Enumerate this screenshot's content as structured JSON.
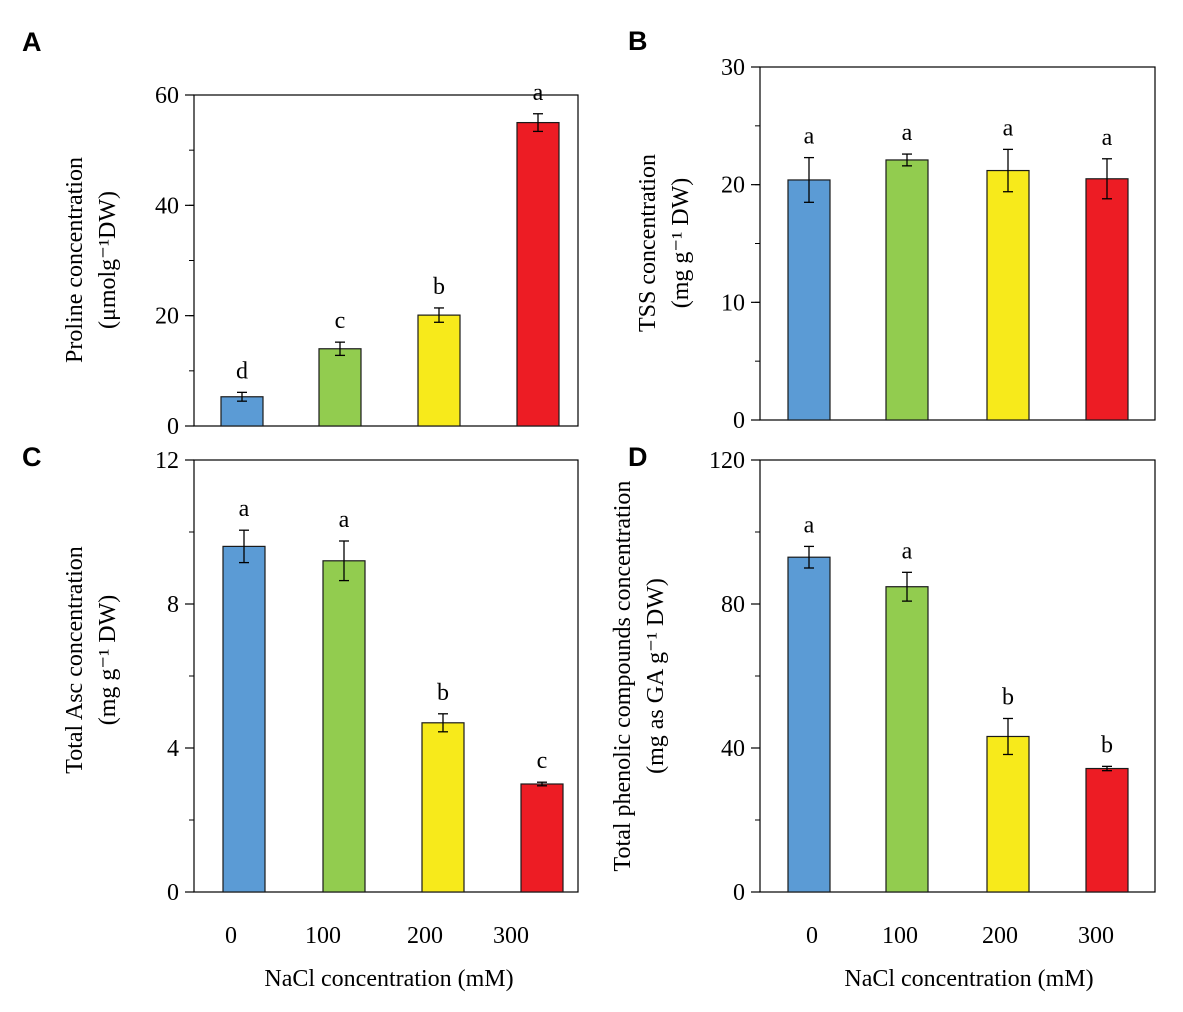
{
  "figure": {
    "xlabel": "NaCl concentration  (mM)"
  },
  "chart_data": [
    {
      "type": "bar",
      "panel": "A",
      "categories": [
        "0",
        "100",
        "200",
        "300"
      ],
      "values": [
        5.3,
        14.0,
        20.1,
        55.0
      ],
      "errors": [
        0.8,
        1.2,
        1.3,
        1.6
      ],
      "significance": [
        "d",
        "c",
        "b",
        "a"
      ],
      "ylabel_line1": "Proline concentration",
      "ylabel_line2": "(μmolg⁻¹DW)",
      "ylim": [
        0,
        60
      ],
      "yticks": [
        "0",
        "20",
        "40",
        "60"
      ],
      "minor_step": 10,
      "show_xticklabels": false,
      "colors": [
        "#5b9bd5",
        "#92cc4f",
        "#f7ea1b",
        "#ed1c24"
      ]
    },
    {
      "type": "bar",
      "panel": "B",
      "categories": [
        "0",
        "100",
        "200",
        "300"
      ],
      "values": [
        20.4,
        22.1,
        21.2,
        20.5
      ],
      "errors": [
        1.9,
        0.5,
        1.8,
        1.7
      ],
      "significance": [
        "a",
        "a",
        "a",
        "a"
      ],
      "ylabel_line1": "TSS concentration",
      "ylabel_line2": "(mg g⁻¹ DW)",
      "ylim": [
        0,
        30
      ],
      "yticks": [
        "0",
        "10",
        "20",
        "30"
      ],
      "minor_step": 5,
      "show_xticklabels": false,
      "colors": [
        "#5b9bd5",
        "#92cc4f",
        "#f7ea1b",
        "#ed1c24"
      ]
    },
    {
      "type": "bar",
      "panel": "C",
      "categories": [
        "0",
        "100",
        "200",
        "300"
      ],
      "values": [
        9.6,
        9.2,
        4.7,
        3.0
      ],
      "errors": [
        0.45,
        0.55,
        0.25,
        0.05
      ],
      "significance": [
        "a",
        "a",
        "b",
        "c"
      ],
      "ylabel_line1": "Total Asc concentration",
      "ylabel_line2": "(mg g⁻¹ DW)",
      "ylim": [
        0,
        12
      ],
      "yticks": [
        "0",
        "4",
        "8",
        "12"
      ],
      "minor_step": 2,
      "show_xticklabels": true,
      "colors": [
        "#5b9bd5",
        "#92cc4f",
        "#f7ea1b",
        "#ed1c24"
      ]
    },
    {
      "type": "bar",
      "panel": "D",
      "categories": [
        "0",
        "100",
        "200",
        "300"
      ],
      "values": [
        93.0,
        84.8,
        43.2,
        34.3
      ],
      "errors": [
        3.0,
        4.0,
        5.0,
        0.6
      ],
      "significance": [
        "a",
        "a",
        "b",
        "b"
      ],
      "ylabel_line1": "Total phenolic compounds concentration",
      "ylabel_line2": "(mg as GA g⁻¹ DW)",
      "ylim": [
        0,
        120
      ],
      "yticks": [
        "0",
        "40",
        "80",
        "120"
      ],
      "minor_step": 20,
      "show_xticklabels": true,
      "colors": [
        "#5b9bd5",
        "#92cc4f",
        "#f7ea1b",
        "#ed1c24"
      ]
    }
  ]
}
